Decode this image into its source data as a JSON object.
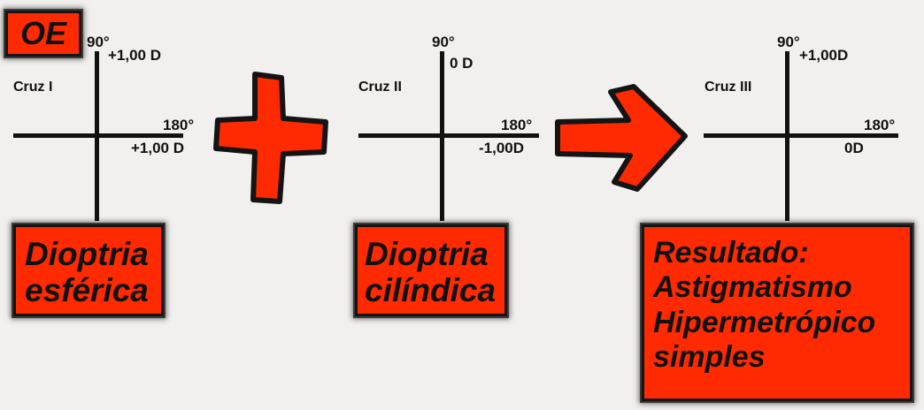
{
  "eye_label": "OE",
  "crosses": [
    {
      "name": "Cruz I",
      "top_axis": "90°",
      "top_value": "+1,00 D",
      "right_axis": "180°",
      "right_value": "+1,00 D",
      "box_lines": [
        "Dioptria",
        "esférica"
      ]
    },
    {
      "name": "Cruz II",
      "top_axis": "90°",
      "top_value": "0 D",
      "right_axis": "180°",
      "right_value": "-1,00D",
      "box_lines": [
        "Dioptria",
        "cilíndica"
      ]
    },
    {
      "name": "Cruz III",
      "top_axis": "90°",
      "top_value": "+1,00D",
      "right_axis": "180°",
      "right_value": "0D",
      "box_lines": [
        "Resultado:",
        "Astigmatismo",
        "Hipermetrópico",
        "simples"
      ]
    }
  ],
  "colors": {
    "accent_red": "#ff2a00",
    "outline": "#141414",
    "background": "#f2f0ee"
  },
  "icons": [
    "plus-icon",
    "arrow-right-icon"
  ]
}
